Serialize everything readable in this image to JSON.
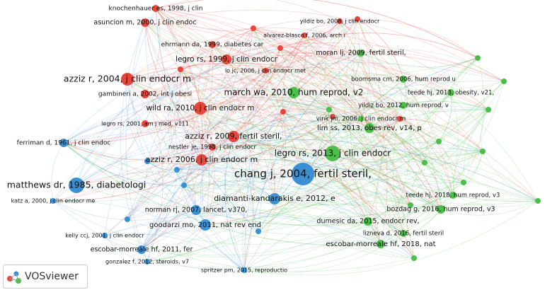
{
  "nodes": [
    {
      "label": "knochenhauer es, 1998, j clin",
      "color": "#e8453c"
    },
    {
      "label": "asuncion m, 2000, j clin endoc",
      "color": "#e8453c"
    },
    {
      "label": "yildiz bo, 2008, j clin endocr",
      "color": "#e8453c"
    },
    {
      "label": "alvarez-blasco f, 2006, arch i",
      "color": "#e8453c"
    },
    {
      "label": "ehrmann da, 1999, diabetes car",
      "color": "#e8453c"
    },
    {
      "label": "legro rs, 1999, j clin endocr",
      "color": "#e8453c"
    },
    {
      "label": "lo jc, 2006, j clin endocr met",
      "color": "#e8453c"
    },
    {
      "label": "azziz r, 2004, j clin endocr m",
      "color": "#e8453c"
    },
    {
      "label": "gambineri a, 2002, int j obesi",
      "color": "#e8453c"
    },
    {
      "label": "wild ra, 2010, j clin endocr m",
      "color": "#e8453c"
    },
    {
      "label": "legro rs, 2001, am j med, v111",
      "color": "#e8453c"
    },
    {
      "label": "azziz r, 2009, fertil steril,",
      "color": "#e8453c"
    },
    {
      "label": "nestler je, 1998, j clin endocr",
      "color": "#e8453c"
    },
    {
      "label": "azziz r, 2006, j clin endocr m",
      "color": "#e8453c"
    },
    {
      "label": "ferriman d, 1961, j clin endoc",
      "color": "#3b8fd4"
    },
    {
      "label": "chang j, 2004, fertil steril,",
      "color": "#3b8fd4"
    },
    {
      "label": "matthews dr, 1985, diabetologi",
      "color": "#3b8fd4"
    },
    {
      "label": "katz a, 2000, j clin endocr me",
      "color": "#3b8fd4"
    },
    {
      "label": "diamanti-kandarakis e, 2012, e",
      "color": "#3b8fd4"
    },
    {
      "label": "norman rj, 2007, lancet, v370,",
      "color": "#3b8fd4"
    },
    {
      "label": "goodarzi mo, 2011, nat rev end",
      "color": "#3b8fd4"
    },
    {
      "label": "kelly ccj, 2001, j clin endocr",
      "color": "#3b8fd4"
    },
    {
      "label": "escobar-morreale hf, 2011, fer",
      "color": "#3b8fd4"
    },
    {
      "label": "gonzalez f, 2012, steroids, v7",
      "color": "#3b8fd4"
    },
    {
      "label": "spritzer pm, 2015, reproductio",
      "color": "#3b8fd4"
    },
    {
      "label": "moran lj, 2009, fertil steril,",
      "color": "#4cbf4a"
    },
    {
      "label": "boomsma cm, 2006, hum reprod u",
      "color": "#4cbf4a"
    },
    {
      "label": "march wa, 2010, hum reprod, v2",
      "color": "#4cbf4a"
    },
    {
      "label": "teede hj, 2013, obesity, v21,",
      "color": "#4cbf4a"
    },
    {
      "label": "yildiz bo, 2012, hum reprod, v",
      "color": "#4cbf4a"
    },
    {
      "label": "vink jm, 2006, j clin endocr m",
      "color": "#4cbf4a"
    },
    {
      "label": "lim ss, 2013, obes rev, v14, p",
      "color": "#4cbf4a"
    },
    {
      "label": "legro rs, 2013, j clin endocr",
      "color": "#4cbf4a"
    },
    {
      "label": "teede hj, 2018, hum reprod, v3",
      "color": "#4cbf4a"
    },
    {
      "label": "bozdag g, 2016, hum reprod, v3",
      "color": "#4cbf4a"
    },
    {
      "label": "dumesic da, 2015, endocr rev,",
      "color": "#4cbf4a"
    },
    {
      "label": "lizneva d, 2016, fertil steril",
      "color": "#4cbf4a"
    },
    {
      "label": "escobar-morreale hf, 2018, nat",
      "color": "#4cbf4a"
    }
  ],
  "logo": {
    "label": "VOSviewer"
  }
}
